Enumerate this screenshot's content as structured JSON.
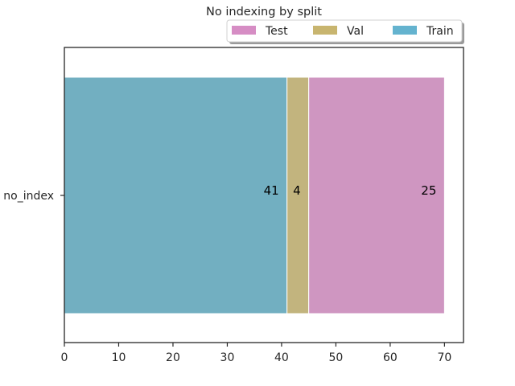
{
  "chart_data": {
    "type": "bar",
    "orientation": "horizontal",
    "stacked": true,
    "title": "No indexing by split",
    "xlabel": "",
    "ylabel": "",
    "categories": [
      "no_index"
    ],
    "xlim": [
      0,
      73.5
    ],
    "xticks": [
      0,
      10,
      20,
      30,
      40,
      50,
      60,
      70
    ],
    "grid": false,
    "legend_position": "top-right",
    "series": [
      {
        "name": "Train",
        "values": [
          41
        ],
        "color": "#72afc1"
      },
      {
        "name": "Val",
        "values": [
          4
        ],
        "color": "#c2b47e"
      },
      {
        "name": "Test",
        "values": [
          25
        ],
        "color": "#cf96c1"
      }
    ],
    "legend": [
      {
        "name": "Test",
        "color": "#d68dc4"
      },
      {
        "name": "Val",
        "color": "#c8b56f"
      },
      {
        "name": "Train",
        "color": "#64b3cf"
      }
    ]
  }
}
